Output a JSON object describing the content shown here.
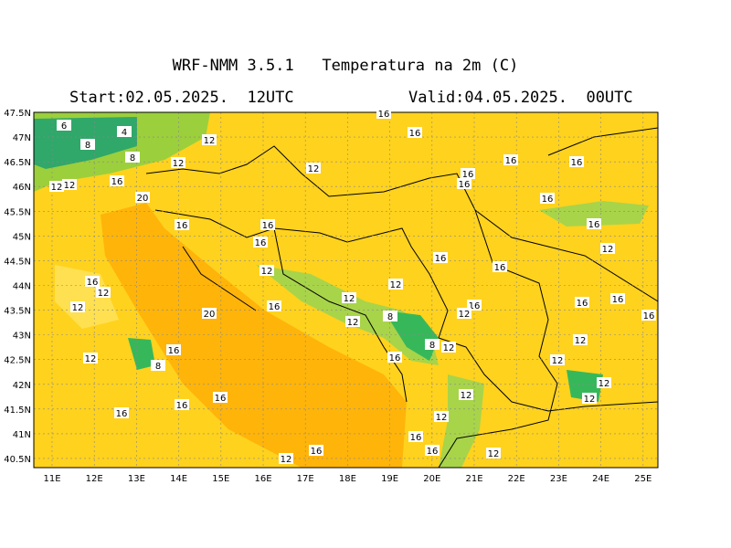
{
  "header": {
    "title": "WRF-NMM 3.5.1   Temperatura na 2m (C)",
    "start": "Start:02.05.2025.  12UTC",
    "valid": "Valid:04.05.2025.  00UTC"
  },
  "map": {
    "lat_labels": [
      "47.5N",
      "47N",
      "46.5N",
      "46N",
      "45.5N",
      "45N",
      "44.5N",
      "44N",
      "43.5N",
      "43N",
      "42.5N",
      "42N",
      "41.5N",
      "41N",
      "40.5N"
    ],
    "lon_labels": [
      "11E",
      "12E",
      "13E",
      "14E",
      "15E",
      "16E",
      "17E",
      "18E",
      "19E",
      "20E",
      "21E",
      "22E",
      "23E",
      "24E",
      "25E"
    ],
    "contour_labels": [
      6,
      4,
      8,
      8,
      12,
      12,
      12,
      12,
      16,
      20,
      16,
      16,
      16,
      12,
      16,
      16,
      16,
      16,
      16,
      16,
      16,
      16,
      12,
      16,
      16,
      16,
      16,
      12,
      12,
      20,
      16,
      12,
      12,
      12,
      8,
      16,
      12,
      16,
      16,
      16,
      12,
      12,
      12,
      12,
      12,
      16,
      8,
      12,
      16,
      16,
      8,
      12,
      16,
      12,
      12,
      16,
      16,
      12,
      12,
      16
    ]
  }
}
